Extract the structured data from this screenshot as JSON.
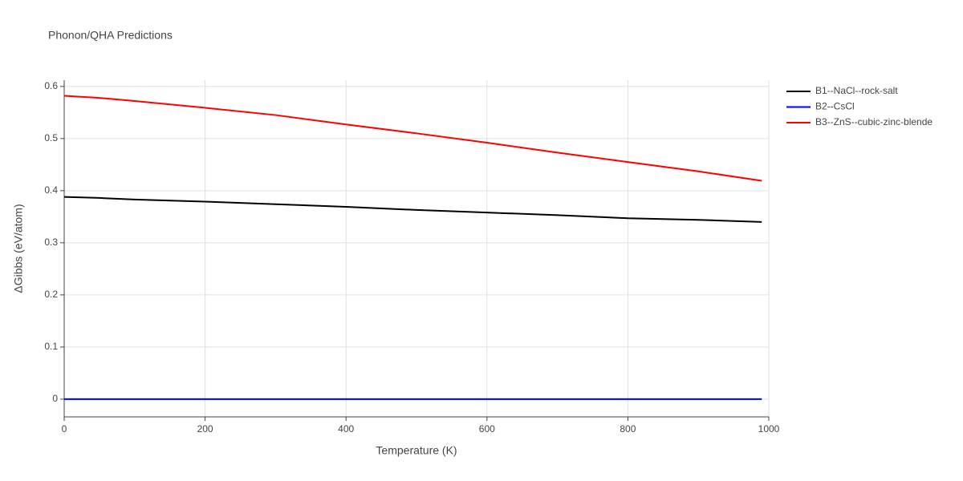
{
  "chart_data": {
    "type": "line",
    "title": "Phonon/QHA Predictions",
    "x_label": "Temperature (K)",
    "y_label": "ΔGibbs (eV/atom)",
    "x": [
      0,
      50,
      100,
      200,
      300,
      400,
      500,
      600,
      700,
      800,
      900,
      990
    ],
    "series": [
      {
        "name": "B1--NaCl--rock-salt",
        "color": "#000000",
        "values": [
          0.388,
          0.386,
          0.383,
          0.379,
          0.374,
          0.369,
          0.363,
          0.358,
          0.353,
          0.347,
          0.344,
          0.34
        ]
      },
      {
        "name": "B2--CsCl",
        "color": "#0000ff",
        "values": [
          0,
          0,
          0,
          0,
          0,
          0,
          0,
          0,
          0,
          0,
          0,
          0
        ]
      },
      {
        "name": "B3--ZnS--cubic-zinc-blende",
        "color": "#ff0000",
        "values": [
          0.582,
          0.578,
          0.572,
          0.559,
          0.545,
          0.527,
          0.51,
          0.492,
          0.473,
          0.455,
          0.437,
          0.419
        ]
      }
    ],
    "xlim": [
      0,
      1000
    ],
    "xticks": [
      0,
      200,
      400,
      600,
      800,
      1000
    ],
    "ylim": [
      -0.034,
      0.612
    ],
    "yticks": [
      0,
      0.1,
      0.2,
      0.3,
      0.4,
      0.5,
      0.6
    ],
    "grid": true,
    "legend": "right"
  }
}
